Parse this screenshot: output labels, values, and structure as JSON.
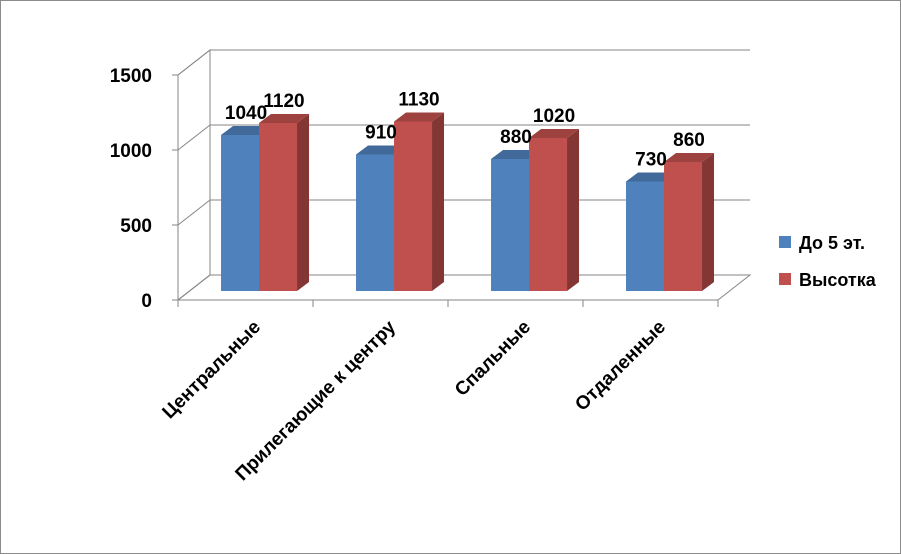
{
  "chart_data": {
    "type": "bar",
    "categories": [
      "Центральные",
      "Прилегающие к центру",
      "Спальные",
      "Отдаленные"
    ],
    "series": [
      {
        "name": "До 5 эт.",
        "values": [
          1040,
          910,
          880,
          730
        ],
        "color": "#4f81bd"
      },
      {
        "name": "Высотка",
        "values": [
          1120,
          1130,
          1020,
          860
        ],
        "color": "#c0504d"
      }
    ],
    "ylim": [
      0,
      1500
    ],
    "yticks": [
      "0",
      "500",
      "1000",
      "1500"
    ],
    "grid": true,
    "legend": "right",
    "title": "",
    "xlabel": "",
    "ylabel": ""
  }
}
